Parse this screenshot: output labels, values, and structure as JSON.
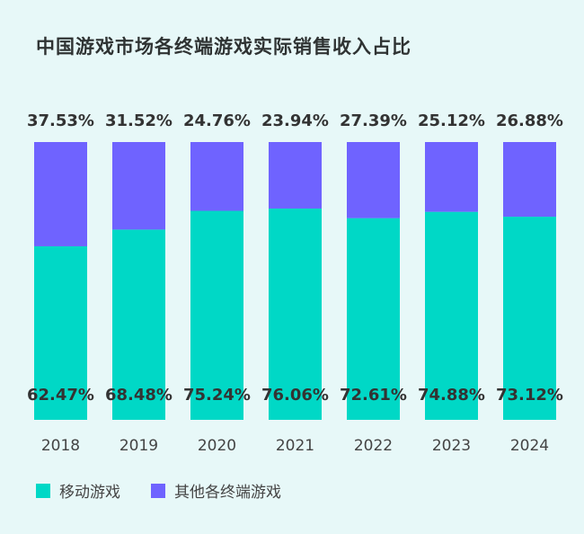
{
  "chart_data": {
    "type": "bar",
    "stacked": true,
    "title": "中国游戏市场各终端游戏实际销售收入占比",
    "categories": [
      "2018",
      "2019",
      "2020",
      "2021",
      "2022",
      "2023",
      "2024"
    ],
    "series": [
      {
        "name": "移动游戏",
        "values": [
          62.47,
          68.48,
          75.24,
          76.06,
          72.61,
          74.88,
          73.12
        ],
        "labels": [
          "62.47%",
          "68.48%",
          "75.24%",
          "76.06%",
          "72.61%",
          "74.88%",
          "73.12%"
        ],
        "color": "#00d8c6"
      },
      {
        "name": "其他各终端游戏",
        "values": [
          37.53,
          31.52,
          24.76,
          23.94,
          27.39,
          25.12,
          26.88
        ],
        "labels": [
          "37.53%",
          "31.52%",
          "24.76%",
          "23.94%",
          "27.39%",
          "25.12%",
          "26.88%"
        ],
        "color": "#6f63ff"
      }
    ],
    "ylim": [
      0,
      100
    ],
    "unit": "%",
    "grid": false,
    "legend_position": "bottom-left"
  }
}
